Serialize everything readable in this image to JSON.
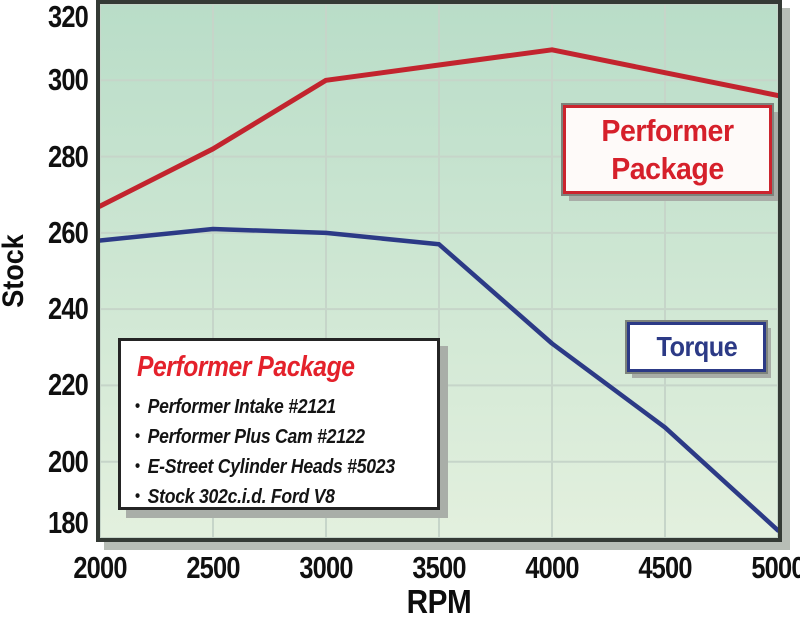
{
  "chart_data": {
    "type": "line",
    "title": "",
    "xlabel": "RPM",
    "ylabel": "Stock",
    "x": [
      2000,
      2500,
      3000,
      3500,
      4000,
      4500,
      5000
    ],
    "xlim": [
      2000,
      5000
    ],
    "ylim": [
      180,
      320
    ],
    "x_ticks": [
      2000,
      2500,
      3000,
      3500,
      4000,
      4500,
      5000
    ],
    "y_ticks": [
      180,
      200,
      220,
      240,
      260,
      280,
      300,
      320
    ],
    "grid": true,
    "grid_color": "#c6d5c9",
    "plot_bg_top": "#b9ddc8",
    "plot_bg_bottom": "#e3f0de",
    "frame_color": "#343a35",
    "legend_position": "in-chart callout boxes",
    "series": [
      {
        "name": "Performer Package",
        "color": "#c2242e",
        "width": 5,
        "values": [
          267,
          282,
          300,
          304,
          308,
          302,
          296
        ]
      },
      {
        "name": "Torque",
        "color": "#2c3a86",
        "width": 4.5,
        "values": [
          258,
          261,
          260,
          257,
          231,
          209,
          182
        ]
      }
    ],
    "annotations": [
      {
        "label": "Performer Package",
        "line1": "Performer",
        "line2": "Package",
        "color": "#d6202b"
      },
      {
        "label": "Torque",
        "color": "#2c3a86"
      }
    ]
  },
  "legend_box": {
    "title": "Performer Package",
    "title_color": "#e4212b",
    "bullet": "•",
    "items": [
      "Performer Intake #2121",
      "Performer Plus Cam #2122",
      "E-Street Cylinder Heads #5023",
      "Stock 302c.i.d. Ford V8"
    ]
  }
}
